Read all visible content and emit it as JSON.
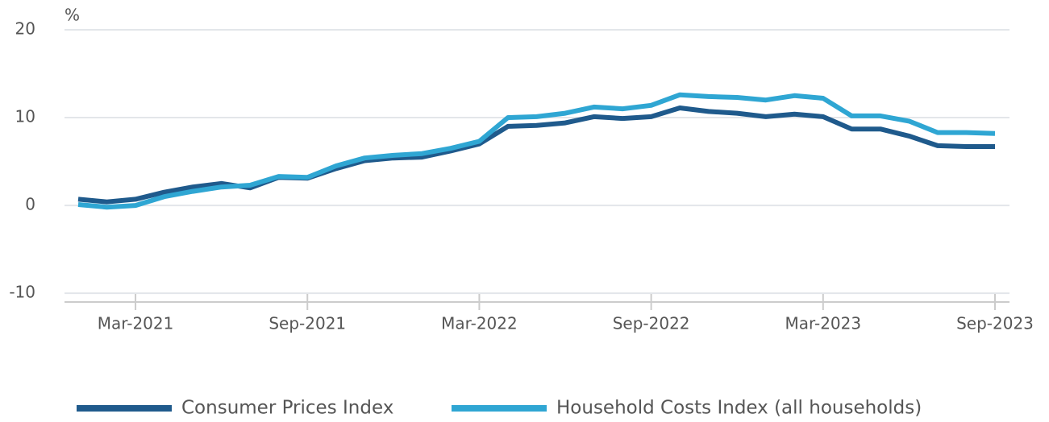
{
  "chart_data": {
    "type": "line",
    "y_unit_label": "%",
    "categories": [
      null,
      null,
      "Mar-2021",
      null,
      null,
      null,
      null,
      null,
      "Sep-2021",
      null,
      null,
      null,
      null,
      null,
      "Mar-2022",
      null,
      null,
      null,
      null,
      null,
      "Sep-2022",
      null,
      null,
      null,
      null,
      null,
      "Mar-2023",
      null,
      null,
      null,
      null,
      null,
      "Sep-2023"
    ],
    "series": [
      {
        "name": "Consumer Prices Index",
        "color": "#1f5a8c",
        "values": [
          0.7,
          0.4,
          0.7,
          1.5,
          2.1,
          2.5,
          2.0,
          3.2,
          3.1,
          4.2,
          5.1,
          5.4,
          5.5,
          6.2,
          7.0,
          9.0,
          9.1,
          9.4,
          10.1,
          9.9,
          10.1,
          11.1,
          10.7,
          10.5,
          10.1,
          10.4,
          10.1,
          8.7,
          8.7,
          7.9,
          6.8,
          6.7,
          6.7
        ]
      },
      {
        "name": "Household Costs Index (all households)",
        "color": "#2fa6d3",
        "values": [
          0.1,
          -0.2,
          0.0,
          1.0,
          1.6,
          2.1,
          2.3,
          3.3,
          3.2,
          4.5,
          5.4,
          5.7,
          5.9,
          6.5,
          7.3,
          10.0,
          10.1,
          10.5,
          11.2,
          11.0,
          11.4,
          12.6,
          12.4,
          12.3,
          12.0,
          12.5,
          12.2,
          10.2,
          10.2,
          9.6,
          8.3,
          8.3,
          8.2
        ]
      }
    ],
    "ylim": [
      -11,
      20
    ],
    "yticks": [
      -10,
      0,
      10,
      20
    ],
    "grid": true,
    "legend": "bottom"
  }
}
